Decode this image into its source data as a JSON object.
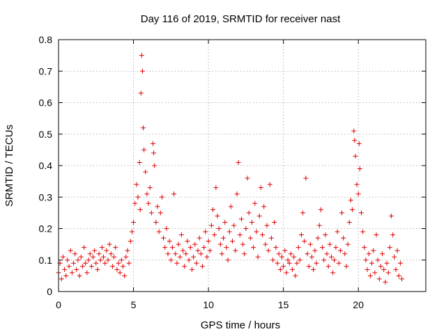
{
  "chart_data": {
    "type": "scatter",
    "title": "Day 116 of 2019, SRMTID for receiver nast",
    "xlabel": "GPS time / hours",
    "ylabel": "SRMTID / TECUs",
    "xlim": [
      0,
      24.5
    ],
    "ylim": [
      0,
      0.8
    ],
    "xticks": [
      0,
      5,
      10,
      15,
      20
    ],
    "xtick_labels": [
      "0",
      "5",
      "10",
      "15",
      "20"
    ],
    "yticks": [
      0,
      0.1,
      0.2,
      0.3,
      0.4,
      0.5,
      0.6,
      0.7,
      0.8
    ],
    "ytick_labels": [
      "0",
      "0.1",
      "0.2",
      "0.3",
      "0.4",
      "0.5",
      "0.6",
      "0.7",
      "0.8"
    ],
    "grid": true,
    "marker": "+",
    "color": "#e00000",
    "series": [
      {
        "name": "SRMTID",
        "points": [
          [
            0.0,
            0.06
          ],
          [
            0.1,
            0.09
          ],
          [
            0.2,
            0.04
          ],
          [
            0.3,
            0.11
          ],
          [
            0.4,
            0.07
          ],
          [
            0.5,
            0.05
          ],
          [
            0.6,
            0.1
          ],
          [
            0.7,
            0.08
          ],
          [
            0.8,
            0.13
          ],
          [
            0.9,
            0.06
          ],
          [
            1.0,
            0.09
          ],
          [
            1.1,
            0.12
          ],
          [
            1.2,
            0.07
          ],
          [
            1.3,
            0.1
          ],
          [
            1.4,
            0.05
          ],
          [
            1.5,
            0.11
          ],
          [
            1.6,
            0.08
          ],
          [
            1.7,
            0.14
          ],
          [
            1.8,
            0.09
          ],
          [
            1.9,
            0.06
          ],
          [
            2.0,
            0.1
          ],
          [
            2.1,
            0.12
          ],
          [
            2.2,
            0.08
          ],
          [
            2.3,
            0.11
          ],
          [
            2.4,
            0.13
          ],
          [
            2.5,
            0.09
          ],
          [
            2.6,
            0.07
          ],
          [
            2.7,
            0.12
          ],
          [
            2.8,
            0.1
          ],
          [
            2.9,
            0.14
          ],
          [
            3.0,
            0.11
          ],
          [
            3.1,
            0.09
          ],
          [
            3.2,
            0.13
          ],
          [
            3.3,
            0.1
          ],
          [
            3.4,
            0.15
          ],
          [
            3.5,
            0.12
          ],
          [
            3.6,
            0.08
          ],
          [
            3.7,
            0.11
          ],
          [
            3.8,
            0.14
          ],
          [
            3.9,
            0.07
          ],
          [
            4.0,
            0.09
          ],
          [
            4.1,
            0.06
          ],
          [
            4.2,
            0.1
          ],
          [
            4.3,
            0.08
          ],
          [
            4.4,
            0.05
          ],
          [
            4.5,
            0.11
          ],
          [
            4.6,
            0.13
          ],
          [
            4.7,
            0.09
          ],
          [
            4.8,
            0.16
          ],
          [
            4.9,
            0.19
          ],
          [
            5.0,
            0.22
          ],
          [
            5.1,
            0.28
          ],
          [
            5.2,
            0.34
          ],
          [
            5.3,
            0.3
          ],
          [
            5.4,
            0.41
          ],
          [
            5.45,
            0.26
          ],
          [
            5.5,
            0.63
          ],
          [
            5.55,
            0.75
          ],
          [
            5.6,
            0.7
          ],
          [
            5.65,
            0.52
          ],
          [
            5.7,
            0.45
          ],
          [
            5.8,
            0.38
          ],
          [
            5.9,
            0.31
          ],
          [
            6.0,
            0.28
          ],
          [
            6.1,
            0.33
          ],
          [
            6.2,
            0.25
          ],
          [
            6.3,
            0.47
          ],
          [
            6.35,
            0.44
          ],
          [
            6.4,
            0.4
          ],
          [
            6.5,
            0.22
          ],
          [
            6.6,
            0.27
          ],
          [
            6.7,
            0.19
          ],
          [
            6.8,
            0.25
          ],
          [
            6.9,
            0.3
          ],
          [
            7.0,
            0.17
          ],
          [
            7.1,
            0.14
          ],
          [
            7.2,
            0.2
          ],
          [
            7.3,
            0.12
          ],
          [
            7.4,
            0.16
          ],
          [
            7.5,
            0.1
          ],
          [
            7.6,
            0.14
          ],
          [
            7.7,
            0.31
          ],
          [
            7.8,
            0.12
          ],
          [
            7.9,
            0.09
          ],
          [
            8.0,
            0.15
          ],
          [
            8.1,
            0.11
          ],
          [
            8.2,
            0.18
          ],
          [
            8.3,
            0.13
          ],
          [
            8.4,
            0.08
          ],
          [
            8.5,
            0.12
          ],
          [
            8.6,
            0.16
          ],
          [
            8.7,
            0.1
          ],
          [
            8.8,
            0.14
          ],
          [
            8.9,
            0.07
          ],
          [
            9.0,
            0.11
          ],
          [
            9.1,
            0.15
          ],
          [
            9.2,
            0.09
          ],
          [
            9.3,
            0.13
          ],
          [
            9.4,
            0.17
          ],
          [
            9.5,
            0.12
          ],
          [
            9.6,
            0.08
          ],
          [
            9.7,
            0.14
          ],
          [
            9.8,
            0.19
          ],
          [
            9.9,
            0.11
          ],
          [
            10.0,
            0.16
          ],
          [
            10.1,
            0.13
          ],
          [
            10.2,
            0.21
          ],
          [
            10.3,
            0.26
          ],
          [
            10.4,
            0.18
          ],
          [
            10.5,
            0.33
          ],
          [
            10.6,
            0.24
          ],
          [
            10.7,
            0.2
          ],
          [
            10.8,
            0.15
          ],
          [
            10.9,
            0.12
          ],
          [
            11.0,
            0.17
          ],
          [
            11.1,
            0.22
          ],
          [
            11.2,
            0.14
          ],
          [
            11.3,
            0.1
          ],
          [
            11.4,
            0.19
          ],
          [
            11.5,
            0.27
          ],
          [
            11.6,
            0.16
          ],
          [
            11.7,
            0.21
          ],
          [
            11.8,
            0.13
          ],
          [
            11.9,
            0.31
          ],
          [
            12.0,
            0.41
          ],
          [
            12.1,
            0.18
          ],
          [
            12.2,
            0.23
          ],
          [
            12.3,
            0.15
          ],
          [
            12.4,
            0.12
          ],
          [
            12.5,
            0.2
          ],
          [
            12.6,
            0.36
          ],
          [
            12.7,
            0.25
          ],
          [
            12.8,
            0.17
          ],
          [
            12.9,
            0.22
          ],
          [
            13.0,
            0.14
          ],
          [
            13.1,
            0.28
          ],
          [
            13.2,
            0.19
          ],
          [
            13.3,
            0.11
          ],
          [
            13.4,
            0.24
          ],
          [
            13.5,
            0.33
          ],
          [
            13.6,
            0.18
          ],
          [
            13.7,
            0.27
          ],
          [
            13.8,
            0.15
          ],
          [
            13.9,
            0.21
          ],
          [
            14.0,
            0.13
          ],
          [
            14.1,
            0.34
          ],
          [
            14.2,
            0.17
          ],
          [
            14.3,
            0.1
          ],
          [
            14.4,
            0.22
          ],
          [
            14.5,
            0.14
          ],
          [
            14.6,
            0.09
          ],
          [
            14.7,
            0.12
          ],
          [
            14.8,
            0.07
          ],
          [
            14.9,
            0.11
          ],
          [
            15.0,
            0.08
          ],
          [
            15.1,
            0.13
          ],
          [
            15.2,
            0.06
          ],
          [
            15.3,
            0.1
          ],
          [
            15.4,
            0.09
          ],
          [
            15.5,
            0.12
          ],
          [
            15.6,
            0.07
          ],
          [
            15.7,
            0.11
          ],
          [
            15.8,
            0.05
          ],
          [
            15.9,
            0.09
          ],
          [
            16.0,
            0.14
          ],
          [
            16.1,
            0.1
          ],
          [
            16.2,
            0.18
          ],
          [
            16.3,
            0.25
          ],
          [
            16.4,
            0.16
          ],
          [
            16.5,
            0.36
          ],
          [
            16.6,
            0.12
          ],
          [
            16.7,
            0.08
          ],
          [
            16.8,
            0.15
          ],
          [
            16.9,
            0.11
          ],
          [
            17.0,
            0.07
          ],
          [
            17.1,
            0.13
          ],
          [
            17.2,
            0.09
          ],
          [
            17.3,
            0.17
          ],
          [
            17.4,
            0.21
          ],
          [
            17.5,
            0.26
          ],
          [
            17.6,
            0.14
          ],
          [
            17.7,
            0.1
          ],
          [
            17.8,
            0.18
          ],
          [
            17.9,
            0.12
          ],
          [
            18.0,
            0.08
          ],
          [
            18.1,
            0.15
          ],
          [
            18.2,
            0.11
          ],
          [
            18.3,
            0.06
          ],
          [
            18.4,
            0.1
          ],
          [
            18.5,
            0.14
          ],
          [
            18.6,
            0.19
          ],
          [
            18.7,
            0.09
          ],
          [
            18.8,
            0.13
          ],
          [
            18.9,
            0.25
          ],
          [
            19.0,
            0.17
          ],
          [
            19.1,
            0.12
          ],
          [
            19.2,
            0.08
          ],
          [
            19.3,
            0.15
          ],
          [
            19.4,
            0.22
          ],
          [
            19.5,
            0.29
          ],
          [
            19.6,
            0.26
          ],
          [
            19.7,
            0.51
          ],
          [
            19.75,
            0.48
          ],
          [
            19.8,
            0.43
          ],
          [
            19.9,
            0.34
          ],
          [
            20.0,
            0.31
          ],
          [
            20.05,
            0.47
          ],
          [
            20.1,
            0.39
          ],
          [
            20.2,
            0.25
          ],
          [
            20.3,
            0.19
          ],
          [
            20.4,
            0.14
          ],
          [
            20.5,
            0.1
          ],
          [
            20.6,
            0.07
          ],
          [
            20.7,
            0.12
          ],
          [
            20.8,
            0.05
          ],
          [
            20.9,
            0.09
          ],
          [
            21.0,
            0.13
          ],
          [
            21.1,
            0.06
          ],
          [
            21.2,
            0.18
          ],
          [
            21.3,
            0.1
          ],
          [
            21.4,
            0.04
          ],
          [
            21.5,
            0.08
          ],
          [
            21.6,
            0.12
          ],
          [
            21.7,
            0.07
          ],
          [
            21.8,
            0.03
          ],
          [
            21.9,
            0.09
          ],
          [
            22.0,
            0.06
          ],
          [
            22.1,
            0.14
          ],
          [
            22.2,
            0.24
          ],
          [
            22.3,
            0.18
          ],
          [
            22.4,
            0.11
          ],
          [
            22.5,
            0.07
          ],
          [
            22.6,
            0.13
          ],
          [
            22.7,
            0.05
          ],
          [
            22.8,
            0.09
          ],
          [
            22.9,
            0.04
          ]
        ]
      }
    ]
  }
}
